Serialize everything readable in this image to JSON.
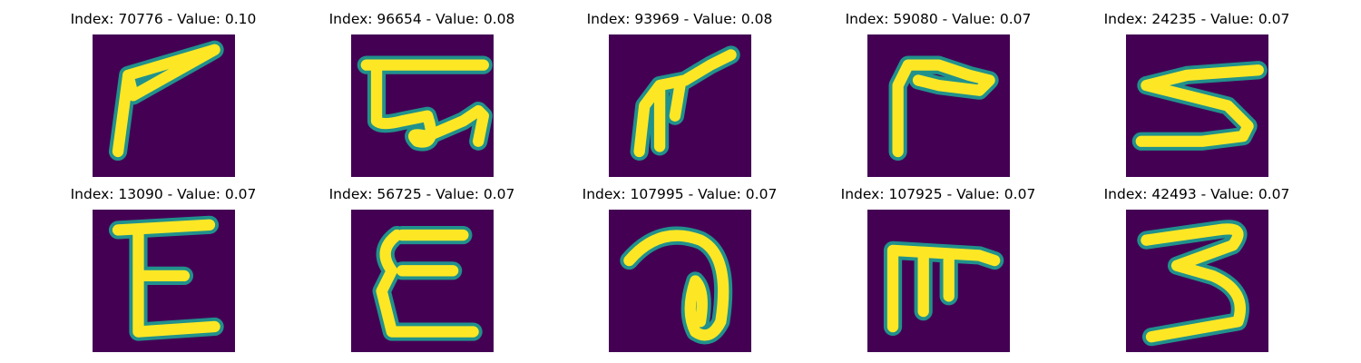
{
  "chart_data": {
    "type": "image_grid",
    "layout": {
      "rows": 2,
      "cols": 5
    },
    "colormap": [
      "#440154",
      "#21918c",
      "#fde725"
    ],
    "panels": [
      {
        "title": "Index: 70776 - Value: 0.10",
        "index": 70776,
        "value": 0.1
      },
      {
        "title": "Index: 96654 - Value: 0.08",
        "index": 96654,
        "value": 0.08
      },
      {
        "title": "Index: 93969 - Value: 0.08",
        "index": 93969,
        "value": 0.08
      },
      {
        "title": "Index: 59080 - Value: 0.07",
        "index": 59080,
        "value": 0.07
      },
      {
        "title": "Index: 24235 - Value: 0.07",
        "index": 24235,
        "value": 0.07
      },
      {
        "title": "Index: 13090 - Value: 0.07",
        "index": 13090,
        "value": 0.07
      },
      {
        "title": "Index: 56725 - Value: 0.07",
        "index": 56725,
        "value": 0.07
      },
      {
        "title": "Index: 107995 - Value: 0.07",
        "index": 107995,
        "value": 0.07
      },
      {
        "title": "Index: 107925 - Value: 0.07",
        "index": 107925,
        "value": 0.07
      },
      {
        "title": "Index: 42493 - Value: 0.07",
        "index": 42493,
        "value": 0.07
      }
    ]
  }
}
